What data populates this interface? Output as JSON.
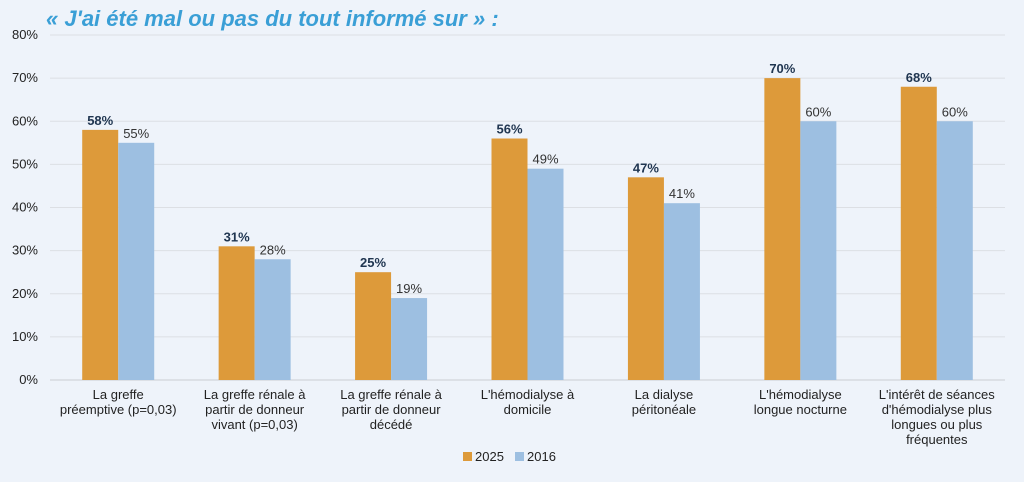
{
  "title": "« J'ai été mal ou pas du tout informé sur » :",
  "chart_data": {
    "type": "bar",
    "title": "« J'ai été mal ou pas du tout informé sur » :",
    "xlabel": "",
    "ylabel": "",
    "ylim": [
      0,
      80
    ],
    "y_ticks": [
      "0%",
      "10%",
      "20%",
      "30%",
      "40%",
      "50%",
      "60%",
      "70%",
      "80%"
    ],
    "y_tick_values": [
      0,
      10,
      20,
      30,
      40,
      50,
      60,
      70,
      80
    ],
    "grid": true,
    "legend_position": "bottom",
    "categories": [
      [
        "La greffe",
        "préemptive (p=0,03)"
      ],
      [
        "La greffe rénale à",
        "partir de donneur",
        "vivant (p=0,03)"
      ],
      [
        "La greffe rénale à",
        "partir de donneur",
        "décédé"
      ],
      [
        "L'hémodialyse à",
        "domicile"
      ],
      [
        "La dialyse",
        "péritonéale"
      ],
      [
        "L'hémodialyse",
        "longue nocturne"
      ],
      [
        "L'intérêt de séances",
        "d'hémodialyse plus",
        "longues ou plus",
        "fréquentes"
      ]
    ],
    "series": [
      {
        "name": "2025",
        "color": "#dd9a3a",
        "values": [
          58,
          31,
          25,
          56,
          47,
          70,
          68
        ],
        "labels": [
          "58%",
          "31%",
          "25%",
          "56%",
          "47%",
          "70%",
          "68%"
        ]
      },
      {
        "name": "2016",
        "color": "#9dbfe1",
        "values": [
          55,
          28,
          19,
          49,
          41,
          60,
          60
        ],
        "labels": [
          "55%",
          "28%",
          "19%",
          "49%",
          "41%",
          "60%",
          "60%"
        ]
      }
    ]
  }
}
